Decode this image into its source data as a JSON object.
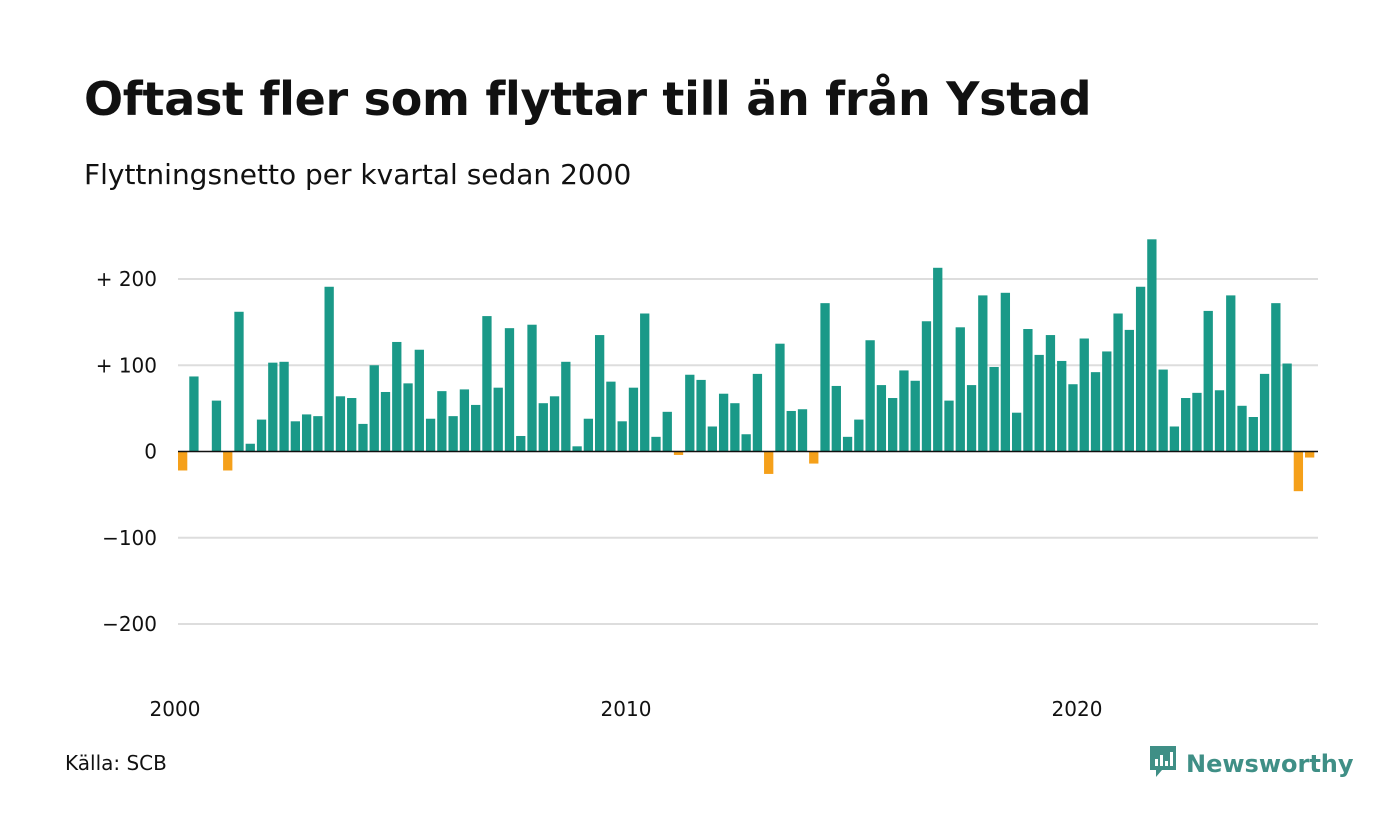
{
  "header": {
    "title": "Oftast fler som flyttar till än från Ystad",
    "subtitle": "Flyttningsnetto per kvartal sedan 2000"
  },
  "footer": {
    "source": "Källa: SCB",
    "brand": "Newsworthy"
  },
  "colors": {
    "positive": "#1a9988",
    "negative": "#f5a01a",
    "grid": "#dddddd",
    "axis": "#111111",
    "brand": "#3f8f86"
  },
  "icons": {
    "brand_logo": "newsworthy-chat-bars-icon"
  },
  "chart_data": {
    "type": "bar",
    "title": "Oftast fler som flyttar till än från Ystad",
    "subtitle": "Flyttningsnetto per kvartal sedan 2000",
    "x_start": "2000-Q1",
    "x_ticks": [
      {
        "value": 2000,
        "label": "2000"
      },
      {
        "value": 2010,
        "label": "2010"
      },
      {
        "value": 2020,
        "label": "2020"
      }
    ],
    "y_ticks": [
      {
        "value": 200,
        "label": "+ 200"
      },
      {
        "value": 100,
        "label": "+ 100"
      },
      {
        "value": 0,
        "label": "0"
      },
      {
        "value": -100,
        "label": "−100"
      },
      {
        "value": -200,
        "label": "−200"
      }
    ],
    "ylim": [
      -250,
      250
    ],
    "grid": true,
    "legend": "none",
    "values": [
      -22,
      87,
      0,
      59,
      -22,
      162,
      9,
      37,
      103,
      104,
      35,
      43,
      41,
      191,
      64,
      62,
      32,
      100,
      69,
      127,
      79,
      118,
      38,
      70,
      41,
      72,
      54,
      157,
      74,
      143,
      18,
      147,
      56,
      64,
      104,
      6,
      38,
      135,
      81,
      35,
      74,
      160,
      17,
      46,
      -4,
      89,
      83,
      29,
      67,
      56,
      20,
      90,
      -26,
      125,
      47,
      49,
      -14,
      172,
      76,
      17,
      37,
      129,
      77,
      62,
      94,
      82,
      151,
      213,
      59,
      144,
      77,
      181,
      98,
      184,
      45,
      142,
      112,
      135,
      105,
      78,
      131,
      92,
      116,
      160,
      141,
      191,
      246,
      95,
      29,
      62,
      68,
      163,
      71,
      181,
      53,
      40,
      90,
      172,
      102,
      -46,
      -7
    ]
  }
}
